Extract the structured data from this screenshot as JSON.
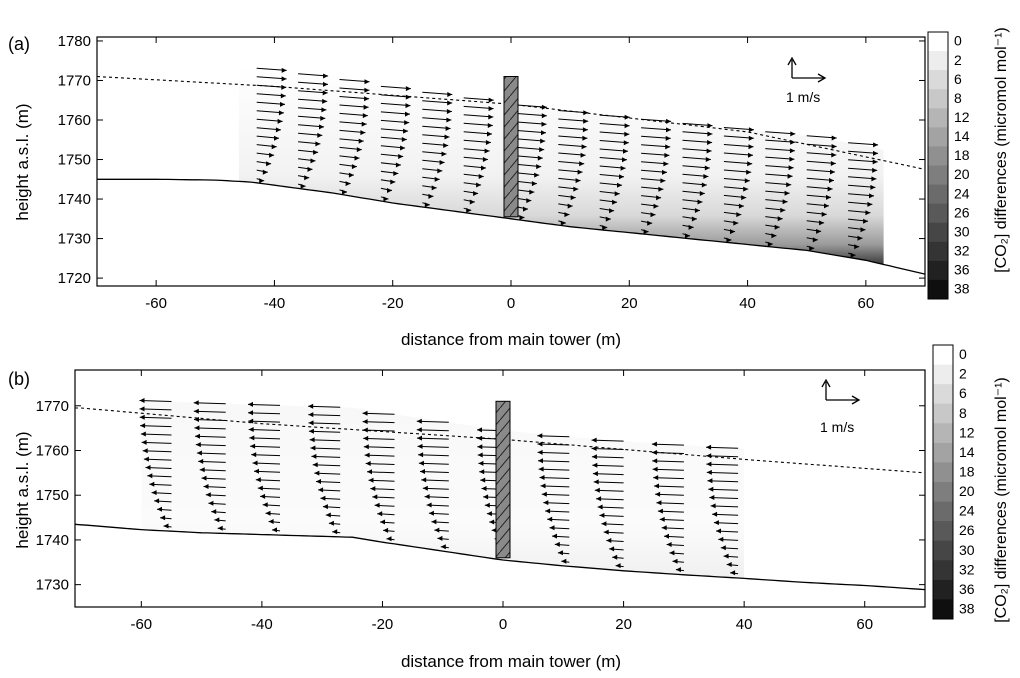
{
  "chart_data": [
    {
      "panel_label": "(a)",
      "type": "vector field over terrain",
      "xlabel": "distance from main tower (m)",
      "ylabel": "height a.s.l. (m)",
      "xlim": [
        -70,
        70
      ],
      "ylim": [
        1718,
        1781
      ],
      "x_ticks": [
        -60,
        -40,
        -20,
        0,
        20,
        40,
        60
      ],
      "y_ticks": [
        1720,
        1730,
        1740,
        1750,
        1760,
        1770,
        1780
      ],
      "ground": {
        "x": [
          -70,
          -60,
          -50,
          -44,
          -30,
          -20,
          -10,
          0,
          10,
          20,
          30,
          40,
          50,
          60,
          70
        ],
        "y": [
          1745,
          1745,
          1744.8,
          1744.3,
          1741.5,
          1739,
          1737,
          1735,
          1733,
          1731.5,
          1730,
          1728.5,
          1727,
          1724.5,
          1721
        ]
      },
      "boundary_line": {
        "x": [
          -70,
          -40,
          0,
          40,
          70
        ],
        "y": [
          1771,
          1768.5,
          1764,
          1757,
          1747.5
        ]
      },
      "field_extent": [
        -46,
        63
      ],
      "direction": "downslope (towards +x)",
      "profiles_x": [
        -43,
        -36,
        -29,
        -22,
        -15,
        -8,
        1,
        8,
        15,
        22,
        29,
        36,
        43,
        50,
        57
      ],
      "profile_top_offset": 29,
      "levels": 14,
      "tower": {
        "x": 0,
        "top": 1771,
        "bottom": 1735.5
      },
      "vector_scale": "1 m/s"
    },
    {
      "panel_label": "(b)",
      "type": "vector field over terrain",
      "xlabel": "distance from main tower (m)",
      "ylabel": "height a.s.l. (m)",
      "xlim": [
        -71,
        70
      ],
      "ylim": [
        1725,
        1778
      ],
      "x_ticks": [
        -60,
        -40,
        -20,
        0,
        20,
        40,
        60
      ],
      "y_ticks": [
        1730,
        1740,
        1750,
        1760,
        1770
      ],
      "ground": {
        "x": [
          -71,
          -60,
          -50,
          -40,
          -30,
          -25,
          -20,
          -10,
          0,
          10,
          20,
          30,
          40,
          50,
          60,
          70
        ],
        "y": [
          1743.5,
          1742.3,
          1741.6,
          1741.2,
          1740.8,
          1740.6,
          1739.5,
          1737.5,
          1735.5,
          1734.2,
          1733.1,
          1732.2,
          1731.4,
          1730.5,
          1729.8,
          1728.9
        ]
      },
      "boundary_line": {
        "x": [
          -70,
          -40,
          0,
          40,
          70
        ],
        "y": [
          1769.5,
          1766,
          1762.5,
          1758,
          1755
        ]
      },
      "field_extent": [
        -60,
        40
      ],
      "direction": "upslope (towards -x)",
      "profiles_x": [
        -55,
        -46,
        -37,
        -27,
        -18,
        -9,
        1,
        11,
        20,
        30,
        39
      ],
      "profile_top_offset": 29,
      "levels": 16,
      "tower": {
        "x": 0,
        "top": 1771,
        "bottom": 1736
      },
      "vector_scale": "1 m/s"
    }
  ],
  "colorbar": {
    "title": "[CO₂] differences (micromol mol⁻¹)",
    "labels": [
      "0",
      "2",
      "6",
      "8",
      "12",
      "14",
      "18",
      "20",
      "24",
      "26",
      "30",
      "32",
      "36",
      "38"
    ]
  }
}
